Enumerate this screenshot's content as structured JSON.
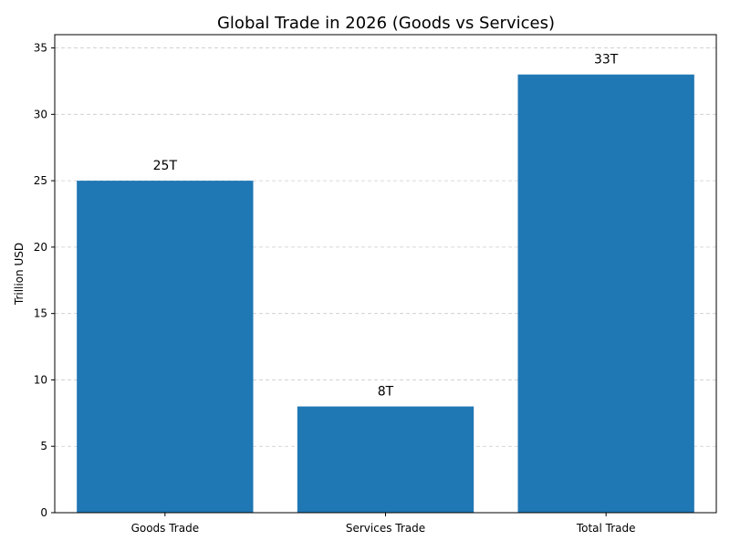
{
  "chart_data": {
    "type": "bar",
    "title": "Global Trade in 2026 (Goods vs Services)",
    "xlabel": "",
    "ylabel": "Trillion USD",
    "categories": [
      "Goods Trade",
      "Services Trade",
      "Total Trade"
    ],
    "values": [
      25,
      8,
      33
    ],
    "data_labels": [
      "25T",
      "8T",
      "33T"
    ],
    "ylim": [
      0,
      36
    ],
    "yticks": [
      0,
      5,
      10,
      15,
      20,
      25,
      30,
      35
    ],
    "grid": "y-axis dashed",
    "legend": "none",
    "bar_color": "#1f77b4",
    "grid_color": "#cccccc"
  }
}
